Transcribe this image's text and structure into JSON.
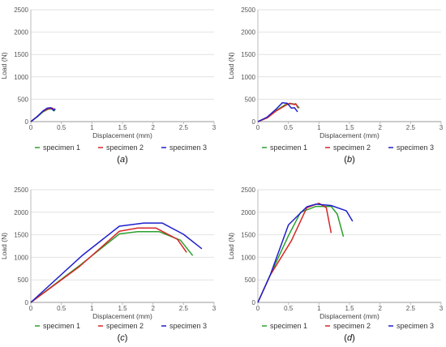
{
  "figure": {
    "series_colors": {
      "specimen 1": "#2ca02c",
      "specimen 2": "#d62728",
      "specimen 3": "#1f1fcc"
    }
  },
  "chart_data": [
    {
      "panel": "a",
      "type": "line",
      "xlabel": "Displacement (mm)",
      "ylabel": "Load (N)",
      "xlim": [
        0,
        3
      ],
      "ylim": [
        0,
        2500
      ],
      "xticks": [
        "0",
        "0.5",
        "1",
        "1.5",
        "2",
        "2.5",
        "3"
      ],
      "yticks": [
        "0",
        "500",
        "1000",
        "1500",
        "2000",
        "2500"
      ],
      "grid": "horizontal",
      "legend": [
        "specimen 1",
        "specimen 2",
        "specimen 3"
      ],
      "legend_position": "bottom",
      "series": [
        {
          "name": "specimen 1",
          "points": [
            [
              0,
              0
            ],
            [
              0.1,
              100
            ],
            [
              0.2,
              220
            ],
            [
              0.28,
              275
            ],
            [
              0.35,
              285
            ],
            [
              0.38,
              240
            ],
            [
              0.4,
              270
            ]
          ]
        },
        {
          "name": "specimen 2",
          "points": [
            [
              0,
              0
            ],
            [
              0.1,
              110
            ],
            [
              0.2,
              230
            ],
            [
              0.28,
              285
            ],
            [
              0.36,
              300
            ],
            [
              0.38,
              260
            ],
            [
              0.4,
              285
            ]
          ]
        },
        {
          "name": "specimen 3",
          "points": [
            [
              0,
              0
            ],
            [
              0.1,
              105
            ],
            [
              0.2,
              240
            ],
            [
              0.27,
              300
            ],
            [
              0.33,
              310
            ],
            [
              0.37,
              250
            ],
            [
              0.4,
              290
            ]
          ]
        }
      ]
    },
    {
      "panel": "b",
      "type": "line",
      "xlabel": "Displacement (mm)",
      "ylabel": "Load (N)",
      "xlim": [
        0,
        3
      ],
      "ylim": [
        0,
        2500
      ],
      "xticks": [
        "0",
        "0.5",
        "1",
        "1.5",
        "2",
        "2.5",
        "3"
      ],
      "yticks": [
        "0",
        "500",
        "1000",
        "1500",
        "2000",
        "2500"
      ],
      "grid": "horizontal",
      "legend": [
        "specimen 1",
        "specimen 2",
        "specimen 3"
      ],
      "legend_position": "bottom",
      "series": [
        {
          "name": "specimen 1",
          "points": [
            [
              0,
              0
            ],
            [
              0.15,
              90
            ],
            [
              0.3,
              250
            ],
            [
              0.45,
              380
            ],
            [
              0.55,
              400
            ],
            [
              0.62,
              390
            ],
            [
              0.68,
              300
            ]
          ]
        },
        {
          "name": "specimen 2",
          "points": [
            [
              0,
              0
            ],
            [
              0.15,
              80
            ],
            [
              0.3,
              240
            ],
            [
              0.45,
              360
            ],
            [
              0.52,
              410
            ],
            [
              0.6,
              380
            ],
            [
              0.62,
              400
            ],
            [
              0.66,
              300
            ]
          ]
        },
        {
          "name": "specimen 3",
          "points": [
            [
              0,
              0
            ],
            [
              0.15,
              100
            ],
            [
              0.3,
              280
            ],
            [
              0.4,
              420
            ],
            [
              0.48,
              410
            ],
            [
              0.55,
              300
            ],
            [
              0.6,
              310
            ],
            [
              0.65,
              220
            ]
          ]
        }
      ]
    },
    {
      "panel": "c",
      "type": "line",
      "xlabel": "Displacement (mm)",
      "ylabel": "Load (N)",
      "xlim": [
        0,
        3
      ],
      "ylim": [
        0,
        2500
      ],
      "xticks": [
        "0",
        "0.5",
        "1",
        "1.5",
        "2",
        "2.5",
        "3"
      ],
      "yticks": [
        "0",
        "500",
        "1000",
        "1500",
        "2000",
        "2500"
      ],
      "grid": "horizontal",
      "legend": [
        "specimen 1",
        "specimen 2",
        "specimen 3"
      ],
      "legend_position": "bottom",
      "series": [
        {
          "name": "specimen 1",
          "points": [
            [
              0,
              0
            ],
            [
              0.8,
              820
            ],
            [
              1.45,
              1520
            ],
            [
              1.75,
              1570
            ],
            [
              2.1,
              1570
            ],
            [
              2.45,
              1380
            ],
            [
              2.65,
              1040
            ]
          ]
        },
        {
          "name": "specimen 2",
          "points": [
            [
              0,
              0
            ],
            [
              0.8,
              800
            ],
            [
              1.45,
              1580
            ],
            [
              1.75,
              1650
            ],
            [
              2.05,
              1650
            ],
            [
              2.4,
              1400
            ],
            [
              2.55,
              1110
            ]
          ]
        },
        {
          "name": "specimen 3",
          "points": [
            [
              0,
              0
            ],
            [
              0.85,
              1050
            ],
            [
              1.45,
              1690
            ],
            [
              1.85,
              1760
            ],
            [
              2.15,
              1760
            ],
            [
              2.5,
              1510
            ],
            [
              2.8,
              1190
            ]
          ]
        }
      ]
    },
    {
      "panel": "d",
      "type": "line",
      "xlabel": "Displacement (mm)",
      "ylabel": "Load (N)",
      "xlim": [
        0,
        3
      ],
      "ylim": [
        0,
        2500
      ],
      "xticks": [
        "0",
        "0.5",
        "1",
        "1.5",
        "2",
        "2.5",
        "3"
      ],
      "yticks": [
        "0",
        "500",
        "1000",
        "1500",
        "2000",
        "2500"
      ],
      "grid": "horizontal",
      "legend": [
        "specimen 1",
        "specimen 2",
        "specimen 3"
      ],
      "legend_position": "bottom",
      "series": [
        {
          "name": "specimen 1",
          "points": [
            [
              0,
              0
            ],
            [
              0.2,
              600
            ],
            [
              0.5,
              1480
            ],
            [
              0.7,
              2000
            ],
            [
              0.95,
              2130
            ],
            [
              1.2,
              2130
            ],
            [
              1.3,
              1960
            ],
            [
              1.4,
              1460
            ]
          ]
        },
        {
          "name": "specimen 2",
          "points": [
            [
              0,
              0
            ],
            [
              0.2,
              600
            ],
            [
              0.55,
              1370
            ],
            [
              0.8,
              2100
            ],
            [
              1.0,
              2200
            ],
            [
              1.12,
              2100
            ],
            [
              1.2,
              1540
            ]
          ]
        },
        {
          "name": "specimen 3",
          "points": [
            [
              0,
              0
            ],
            [
              0.2,
              600
            ],
            [
              0.5,
              1720
            ],
            [
              0.8,
              2120
            ],
            [
              0.95,
              2180
            ],
            [
              1.2,
              2150
            ],
            [
              1.45,
              2030
            ],
            [
              1.55,
              1800
            ]
          ]
        }
      ]
    }
  ]
}
